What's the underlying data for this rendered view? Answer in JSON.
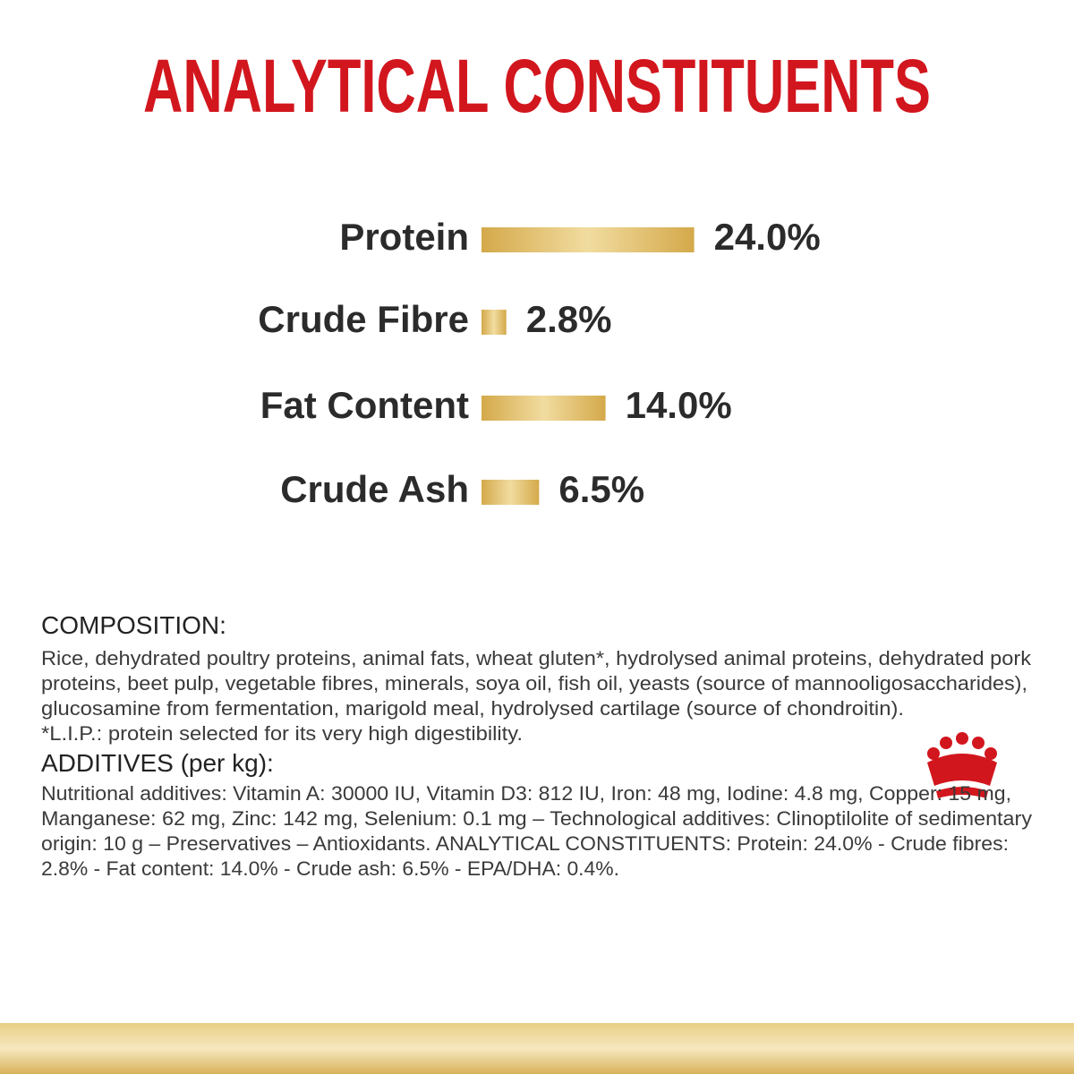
{
  "chart_data": {
    "type": "bar",
    "title": "ANALYTICAL CONSTITUENTS",
    "categories": [
      "Protein",
      "Crude Fibre",
      "Fat Content",
      "Crude Ash"
    ],
    "values": [
      24.0,
      2.8,
      14.0,
      6.5
    ],
    "value_labels": [
      "24.0%",
      "2.8%",
      "14.0%",
      "6.5%"
    ]
  },
  "composition": {
    "heading": "COMPOSITION:",
    "lines": [
      "Rice, dehydrated poultry proteins, animal fats, wheat gluten*, hydrolysed animal proteins, dehydrated pork",
      "proteins, beet pulp, vegetable fibres, minerals, soya oil, fish oil, yeasts (source of mannooligosaccharides),",
      "glucosamine from fermentation, marigold meal, hydrolysed cartilage (source of chondroitin).",
      "*L.I.P.: protein selected for its very high digestibility."
    ]
  },
  "additives": {
    "heading": "ADDITIVES (per kg):",
    "lines": [
      "Nutritional additives: Vitamin A: 30000 IU, Vitamin D3: 812 IU, Iron: 48 mg, Iodine: 4.8 mg, Copper: 15 mg,",
      "Manganese: 62 mg, Zinc: 142 mg, Selenium: 0.1 mg – Technological additives: Clinoptilolite of sedimentary",
      "origin: 10 g – Preservatives – Antioxidants. ANALYTICAL CONSTITUENTS: Protein: 24.0% - Crude fibres:",
      "2.8% - Fat content: 14.0% - Crude ash: 6.5% - EPA/DHA: 0.4%."
    ]
  }
}
